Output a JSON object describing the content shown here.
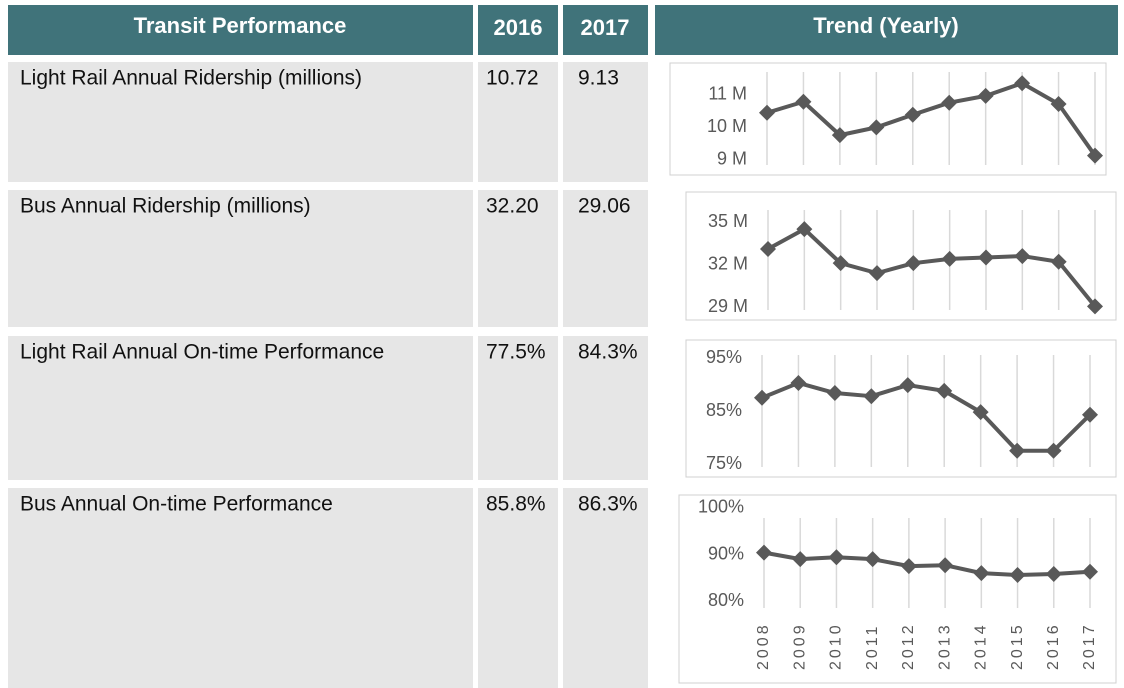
{
  "table": {
    "headers": [
      "Transit Performance",
      "2016",
      "2017",
      "Trend (Yearly)"
    ],
    "rows": [
      [
        "Light Rail Annual Ridership (millions)",
        "10.72",
        "9.13"
      ],
      [
        "Bus Annual Ridership (millions)",
        "32.20",
        "29.06"
      ],
      [
        "Light Rail Annual On-time Performance",
        "77.5%",
        "84.3%"
      ],
      [
        "Bus Annual On-time Performance",
        "85.8%",
        "86.3%"
      ]
    ]
  },
  "chart_data": [
    {
      "type": "line",
      "color": "#595959",
      "values": [
        10.45,
        10.79,
        9.76,
        10.0,
        10.39,
        10.76,
        10.97,
        11.36,
        10.72,
        9.13
      ],
      "ylim": [
        8.5,
        12
      ],
      "yticks": [
        {
          "value": 9,
          "label": "9 M"
        },
        {
          "value": 10,
          "label": "10 M"
        },
        {
          "value": 11,
          "label": "11 M"
        }
      ],
      "grid": true
    },
    {
      "type": "line",
      "color": "#595959",
      "values": [
        33.1,
        34.5,
        32.1,
        31.4,
        32.1,
        32.4,
        32.5,
        32.6,
        32.2,
        29.06
      ],
      "ylim": [
        28,
        37
      ],
      "yticks": [
        {
          "value": 29,
          "label": "29 M"
        },
        {
          "value": 32,
          "label": "32 M"
        },
        {
          "value": 35,
          "label": "35 M"
        }
      ],
      "grid": true
    },
    {
      "type": "line",
      "color": "#595959",
      "values": [
        87.5,
        90.3,
        88.4,
        87.8,
        89.9,
        88.8,
        84.8,
        77.5,
        77.5,
        84.3
      ],
      "ylim": [
        72.5,
        98.5
      ],
      "yticks": [
        {
          "value": 75,
          "label": "75%"
        },
        {
          "value": 85,
          "label": "85%"
        },
        {
          "value": 95,
          "label": "95%"
        }
      ],
      "grid": true
    },
    {
      "type": "line",
      "color": "#595959",
      "categories": [
        "2008",
        "2009",
        "2010",
        "2011",
        "2012",
        "2013",
        "2014",
        "2015",
        "2016",
        "2017"
      ],
      "values": [
        90.4,
        89.0,
        89.4,
        89.0,
        87.5,
        87.7,
        86.0,
        85.6,
        85.8,
        86.3
      ],
      "ylim": [
        78.5,
        101.5
      ],
      "yticks": [
        {
          "value": 80,
          "label": "80%"
        },
        {
          "value": 90,
          "label": "90%"
        },
        {
          "value": 100,
          "label": "100%"
        }
      ],
      "grid": true
    }
  ]
}
